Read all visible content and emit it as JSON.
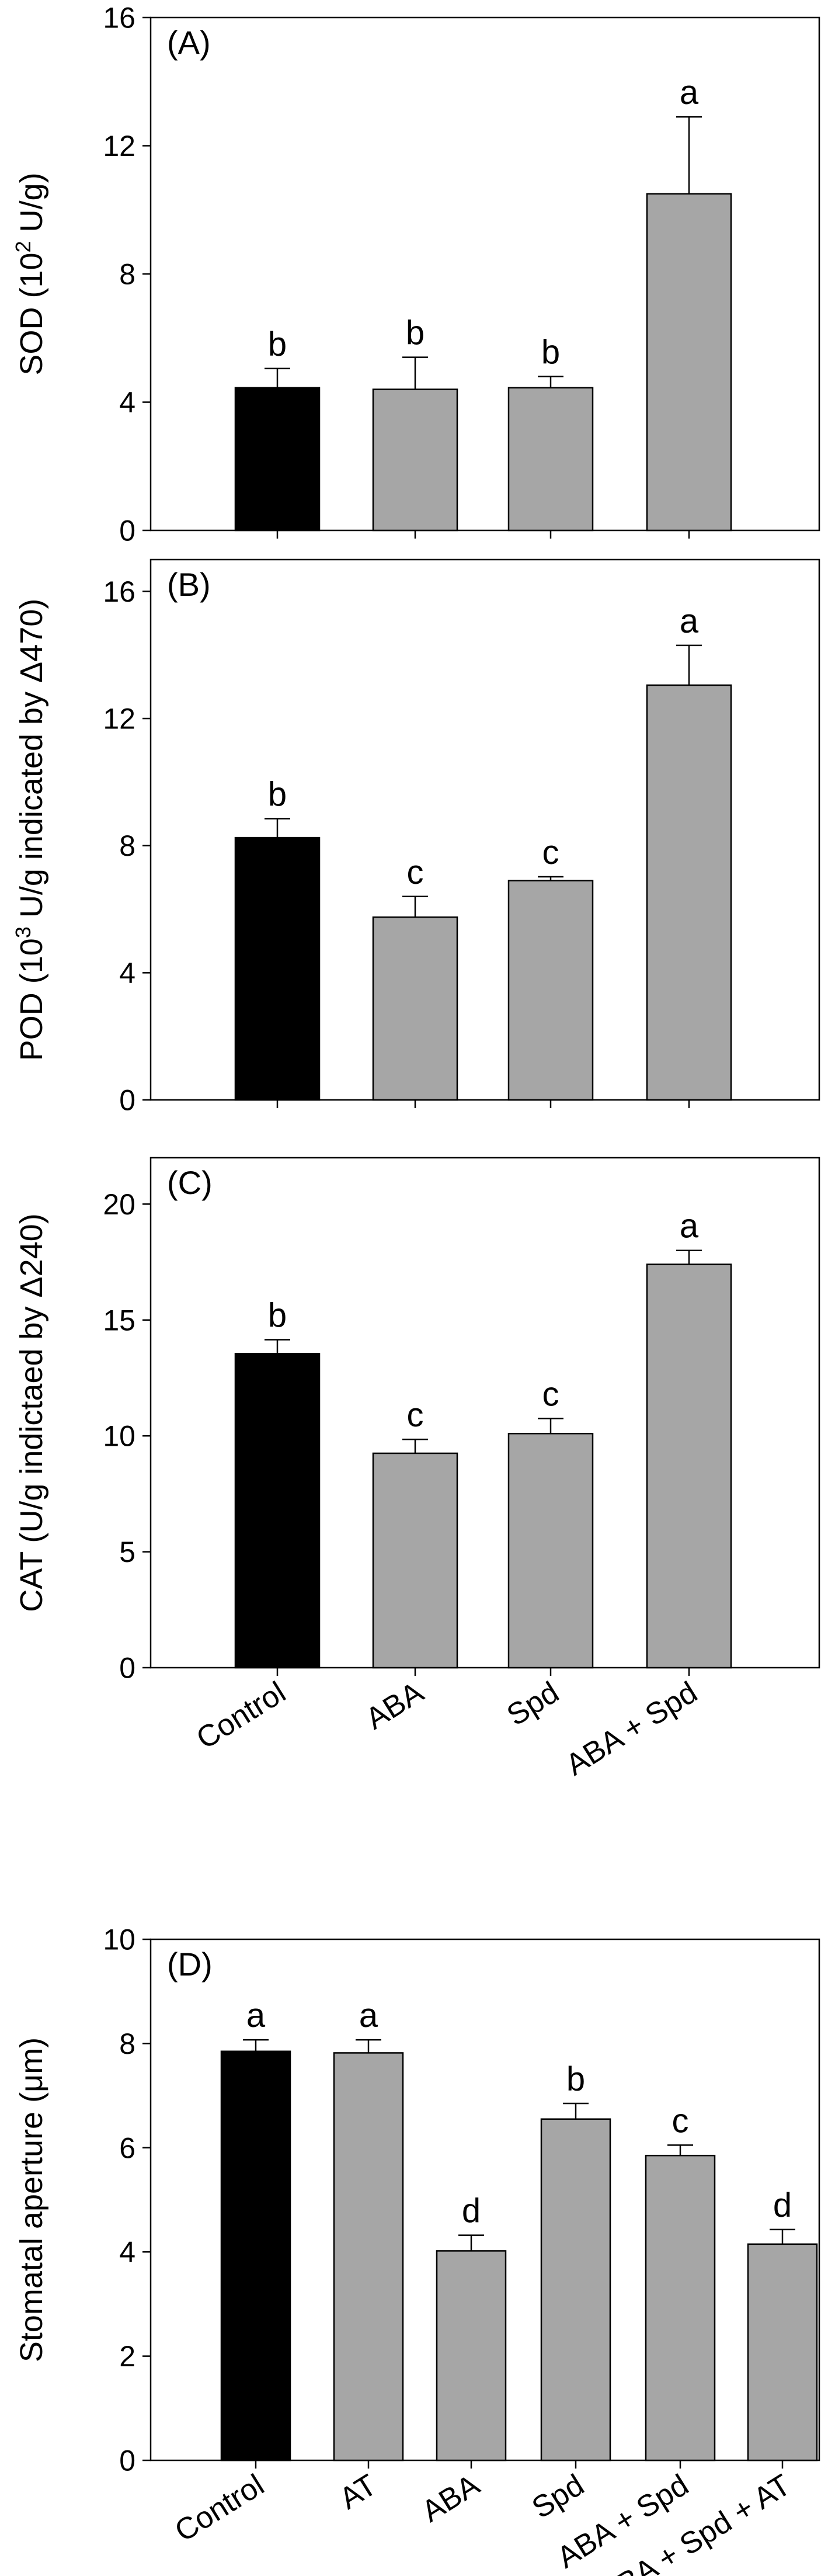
{
  "chart_data": [
    {
      "type": "bar",
      "panel_label": "(A)",
      "ylabel": "SOD (10",
      "ylabel_sup": "2",
      "ylabel_end": " U/g)",
      "ylim": [
        0,
        16
      ],
      "yticks": [
        "0",
        "4",
        "8",
        "12",
        "16"
      ],
      "categories": [
        "Control",
        "ABA",
        "Spd",
        "ABA + Spd"
      ],
      "values": [
        4.45,
        4.4,
        4.45,
        10.5
      ],
      "errors": [
        0.6,
        1.0,
        0.35,
        2.4
      ],
      "letters": [
        "b",
        "b",
        "b",
        "a"
      ],
      "bar_colors": [
        "#000000",
        "#a6a6a6",
        "#a6a6a6",
        "#a6a6a6"
      ],
      "show_xticklabels": false
    },
    {
      "type": "bar",
      "panel_label": "(B)",
      "ylabel": "POD (10",
      "ylabel_sup": "3",
      "ylabel_end": " U/g indicated by Δ470)",
      "ylim": [
        0,
        17
      ],
      "yticks": [
        "0",
        "4",
        "8",
        "12",
        "16"
      ],
      "categories": [
        "Control",
        "ABA",
        "Spd",
        "ABA + Spd"
      ],
      "values": [
        8.25,
        5.75,
        6.9,
        13.05
      ],
      "errors": [
        0.6,
        0.65,
        0.12,
        1.25
      ],
      "letters": [
        "b",
        "c",
        "c",
        "a"
      ],
      "bar_colors": [
        "#000000",
        "#a6a6a6",
        "#a6a6a6",
        "#a6a6a6"
      ],
      "show_xticklabels": false
    },
    {
      "type": "bar",
      "panel_label": "(C)",
      "ylabel": "CAT (U/g indictaed by Δ240)",
      "ylabel_sup": "",
      "ylabel_end": "",
      "ylim": [
        0,
        22
      ],
      "yticks": [
        "0",
        "5",
        "10",
        "15",
        "20"
      ],
      "categories": [
        "Control",
        "ABA",
        "Spd",
        "ABA + Spd"
      ],
      "values": [
        13.55,
        9.25,
        10.1,
        17.4
      ],
      "errors": [
        0.6,
        0.6,
        0.65,
        0.6
      ],
      "letters": [
        "b",
        "c",
        "c",
        "a"
      ],
      "bar_colors": [
        "#000000",
        "#a6a6a6",
        "#a6a6a6",
        "#a6a6a6"
      ],
      "show_xticklabels": true
    },
    {
      "type": "bar",
      "panel_label": "(D)",
      "ylabel": "Stomatal aperture (μm)",
      "ylabel_sup": "",
      "ylabel_end": "",
      "ylim": [
        0,
        10
      ],
      "yticks": [
        "0",
        "2",
        "4",
        "6",
        "8",
        "10"
      ],
      "categories": [
        "Control",
        "AT",
        "ABA",
        "Spd",
        "ABA + Spd",
        "ABA + Spd + AT"
      ],
      "values": [
        7.85,
        7.82,
        4.02,
        6.55,
        5.85,
        4.15
      ],
      "errors": [
        0.22,
        0.25,
        0.3,
        0.3,
        0.2,
        0.28
      ],
      "letters": [
        "a",
        "a",
        "d",
        "b",
        "c",
        "d"
      ],
      "bar_colors": [
        "#000000",
        "#a6a6a6",
        "#a6a6a6",
        "#a6a6a6",
        "#a6a6a6",
        "#a6a6a6"
      ],
      "show_xticklabels": true
    }
  ]
}
